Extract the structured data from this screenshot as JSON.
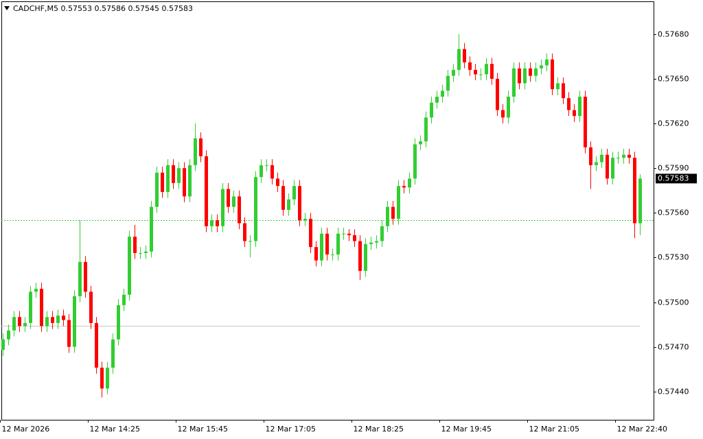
{
  "chart_data": {
    "type": "candlestick",
    "symbol": "CADCHF,M5",
    "categories": [
      "12 Mar 2026",
      null,
      null,
      null,
      null,
      null,
      null,
      null,
      null,
      null,
      null,
      null,
      null,
      null,
      null,
      null,
      "12 Mar 14:25",
      null,
      null,
      null,
      null,
      null,
      null,
      null,
      null,
      null,
      null,
      null,
      null,
      null,
      null,
      null,
      "12 Mar 15:45",
      null,
      null,
      null,
      null,
      null,
      null,
      null,
      null,
      null,
      null,
      null,
      null,
      null,
      null,
      null,
      "12 Mar 17:05",
      null,
      null,
      null,
      null,
      null,
      null,
      null,
      null,
      null,
      null,
      null,
      null,
      null,
      null,
      null,
      "12 Mar 18:25",
      null,
      null,
      null,
      null,
      null,
      null,
      null,
      null,
      null,
      null,
      null,
      null,
      null,
      null,
      null,
      "12 Mar 19:45",
      null,
      null,
      null,
      null,
      null,
      null,
      null,
      null,
      null,
      null,
      null,
      null,
      null,
      null,
      null,
      "12 Mar 21:05",
      null,
      null,
      null,
      null,
      null,
      null,
      null,
      null,
      null,
      null,
      null,
      null,
      null,
      null,
      null,
      "12 Mar 22:40",
      null,
      null,
      null,
      null
    ],
    "open": [
      0.57468,
      0.57475,
      0.57481,
      0.5749,
      0.57484,
      0.57486,
      0.57507,
      0.57509,
      0.57484,
      0.5749,
      0.57486,
      0.57491,
      0.57488,
      0.5747,
      0.57504,
      0.57527,
      0.57507,
      0.57486,
      0.57456,
      0.57442,
      0.57456,
      0.57475,
      0.57498,
      0.57505,
      0.57544,
      0.57533,
      0.57533,
      0.57534,
      0.57564,
      0.57587,
      0.57574,
      0.57592,
      0.5758,
      0.5759,
      0.57571,
      0.57592,
      0.5761,
      0.57598,
      0.57551,
      0.57555,
      0.57551,
      0.57576,
      0.57564,
      0.57571,
      0.57553,
      0.57541,
      0.57541,
      0.57584,
      0.57592,
      0.57592,
      0.57583,
      0.57578,
      0.57562,
      0.57569,
      0.57578,
      0.57555,
      0.57556,
      0.57537,
      0.57528,
      0.57546,
      0.57532,
      0.57532,
      0.57546,
      0.57546,
      0.57545,
      0.57541,
      0.57521,
      0.57539,
      0.5754,
      0.57541,
      0.57551,
      0.57564,
      0.57556,
      0.57578,
      0.57577,
      0.57583,
      0.57606,
      0.57608,
      0.57624,
      0.57634,
      0.57638,
      0.57642,
      0.57652,
      0.57656,
      0.5767,
      0.57661,
      0.57656,
      0.57653,
      0.57653,
      0.5766,
      0.5765,
      0.57629,
      0.57624,
      0.57638,
      0.57657,
      0.57647,
      0.57657,
      0.57652,
      0.57657,
      0.57659,
      0.57663,
      0.57643,
      0.57647,
      0.57637,
      0.57629,
      0.57625,
      0.57638,
      0.57604,
      0.57592,
      0.57594,
      0.57599,
      0.57583,
      0.57597,
      0.57597,
      0.57599,
      0.57597,
      0.57553
    ],
    "high": [
      0.57479,
      0.57485,
      0.57494,
      0.57494,
      0.5749,
      0.57511,
      0.57513,
      0.57513,
      0.57494,
      0.57494,
      0.57495,
      0.57495,
      0.57492,
      0.57508,
      0.57555,
      0.57531,
      0.57511,
      0.5749,
      0.5746,
      0.5746,
      0.57479,
      0.57502,
      0.57509,
      0.57548,
      0.57552,
      0.57537,
      0.57538,
      0.57568,
      0.57591,
      0.57591,
      0.57596,
      0.57596,
      0.57594,
      0.57594,
      0.57596,
      0.5762,
      0.57614,
      0.57602,
      0.57559,
      0.57559,
      0.5758,
      0.5758,
      0.57575,
      0.57575,
      0.57557,
      0.57545,
      0.57588,
      0.57596,
      0.57596,
      0.57596,
      0.57587,
      0.57582,
      0.57573,
      0.57582,
      0.57582,
      0.5756,
      0.5756,
      0.57541,
      0.5755,
      0.5755,
      0.57536,
      0.5755,
      0.5755,
      0.57549,
      0.57549,
      0.57545,
      0.57543,
      0.57544,
      0.57545,
      0.57555,
      0.57568,
      0.57568,
      0.57582,
      0.57582,
      0.57587,
      0.5761,
      0.57612,
      0.57628,
      0.57638,
      0.57642,
      0.57646,
      0.57656,
      0.5766,
      0.5768,
      0.57674,
      0.57665,
      0.5766,
      0.57657,
      0.57664,
      0.57664,
      0.57654,
      0.57633,
      0.57642,
      0.57661,
      0.57661,
      0.57661,
      0.57661,
      0.57661,
      0.57663,
      0.57667,
      0.57667,
      0.57651,
      0.57651,
      0.57641,
      0.57633,
      0.57642,
      0.57642,
      0.57608,
      0.57598,
      0.57603,
      0.57603,
      0.57601,
      0.57601,
      0.57603,
      0.57603,
      0.57601,
      0.57586
    ],
    "low": [
      0.57464,
      0.57471,
      0.57477,
      0.5748,
      0.5748,
      0.57482,
      0.57503,
      0.5748,
      0.5748,
      0.57482,
      0.57482,
      0.57484,
      0.57466,
      0.57466,
      0.575,
      0.57503,
      0.57482,
      0.57452,
      0.57436,
      0.57438,
      0.57452,
      0.57471,
      0.57494,
      0.57501,
      0.57529,
      0.57529,
      0.57529,
      0.5753,
      0.5756,
      0.5757,
      0.5757,
      0.57576,
      0.57576,
      0.57567,
      0.57567,
      0.57588,
      0.57594,
      0.57547,
      0.57547,
      0.57547,
      0.57547,
      0.5756,
      0.5756,
      0.57549,
      0.57537,
      0.5753,
      0.57537,
      0.5758,
      0.57588,
      0.57579,
      0.57574,
      0.57558,
      0.57558,
      0.57565,
      0.57551,
      0.57551,
      0.57533,
      0.57524,
      0.57524,
      0.57528,
      0.57528,
      0.57528,
      0.57542,
      0.57541,
      0.57537,
      0.57515,
      0.57517,
      0.57535,
      0.57536,
      0.57537,
      0.57547,
      0.57552,
      0.57552,
      0.57573,
      0.57573,
      0.57579,
      0.57602,
      0.57604,
      0.5762,
      0.5763,
      0.57634,
      0.57638,
      0.57648,
      0.57652,
      0.57657,
      0.57652,
      0.57649,
      0.57649,
      0.57649,
      0.57646,
      0.57625,
      0.5762,
      0.5762,
      0.57634,
      0.57643,
      0.57643,
      0.57648,
      0.57648,
      0.57653,
      0.57655,
      0.57639,
      0.57639,
      0.57633,
      0.57625,
      0.57621,
      0.57621,
      0.576,
      0.57576,
      0.57588,
      0.5759,
      0.57579,
      0.57579,
      0.57593,
      0.57593,
      0.57593,
      0.57543,
      0.57545
    ],
    "close": [
      0.57475,
      0.57481,
      0.5749,
      0.57484,
      0.57486,
      0.57507,
      0.57509,
      0.57484,
      0.5749,
      0.57486,
      0.57491,
      0.57488,
      0.5747,
      0.57504,
      0.57527,
      0.57507,
      0.57486,
      0.57456,
      0.57442,
      0.57456,
      0.57475,
      0.57498,
      0.57505,
      0.57544,
      0.57533,
      0.57533,
      0.57534,
      0.57564,
      0.57587,
      0.57574,
      0.57592,
      0.5758,
      0.5759,
      0.57571,
      0.57592,
      0.5761,
      0.57598,
      0.57551,
      0.57555,
      0.57551,
      0.57576,
      0.57564,
      0.57571,
      0.57553,
      0.57541,
      0.57541,
      0.57584,
      0.57592,
      0.57592,
      0.57583,
      0.57578,
      0.57562,
      0.57569,
      0.57578,
      0.57555,
      0.57556,
      0.57537,
      0.57528,
      0.57546,
      0.57532,
      0.57532,
      0.57546,
      0.57546,
      0.57545,
      0.57541,
      0.57521,
      0.57539,
      0.5754,
      0.57541,
      0.57551,
      0.57564,
      0.57556,
      0.57578,
      0.57577,
      0.57583,
      0.57606,
      0.57608,
      0.57624,
      0.57634,
      0.57638,
      0.57642,
      0.57652,
      0.57656,
      0.5767,
      0.57661,
      0.57656,
      0.57653,
      0.57653,
      0.5766,
      0.5765,
      0.57629,
      0.57624,
      0.57638,
      0.57657,
      0.57647,
      0.57657,
      0.57652,
      0.57657,
      0.57659,
      0.57663,
      0.57643,
      0.57647,
      0.57637,
      0.57629,
      0.57625,
      0.57638,
      0.57604,
      0.57592,
      0.57594,
      0.57599,
      0.57583,
      0.57597,
      0.57597,
      0.57599,
      0.57597,
      0.57553,
      0.57583
    ],
    "up_color": "#32cd32",
    "down_color": "#ff0000",
    "ylim": [
      0.57421,
      0.57702
    ],
    "yticks": [
      {
        "value": 0.5744,
        "label": "0.57440"
      },
      {
        "value": 0.5747,
        "label": "0.57470"
      },
      {
        "value": 0.575,
        "label": "0.57500"
      },
      {
        "value": 0.5753,
        "label": "0.57530"
      },
      {
        "value": 0.5756,
        "label": "0.57560"
      },
      {
        "value": 0.5759,
        "label": "0.57590"
      },
      {
        "value": 0.5762,
        "label": "0.57620"
      },
      {
        "value": 0.5765,
        "label": "0.57650"
      },
      {
        "value": 0.5768,
        "label": "0.57680"
      }
    ],
    "hlines": [
      {
        "value": 0.57555,
        "color": "#32cd32",
        "dash": true
      },
      {
        "value": 0.57484,
        "color": "#c8c8c8",
        "dash": false
      }
    ]
  }
}
